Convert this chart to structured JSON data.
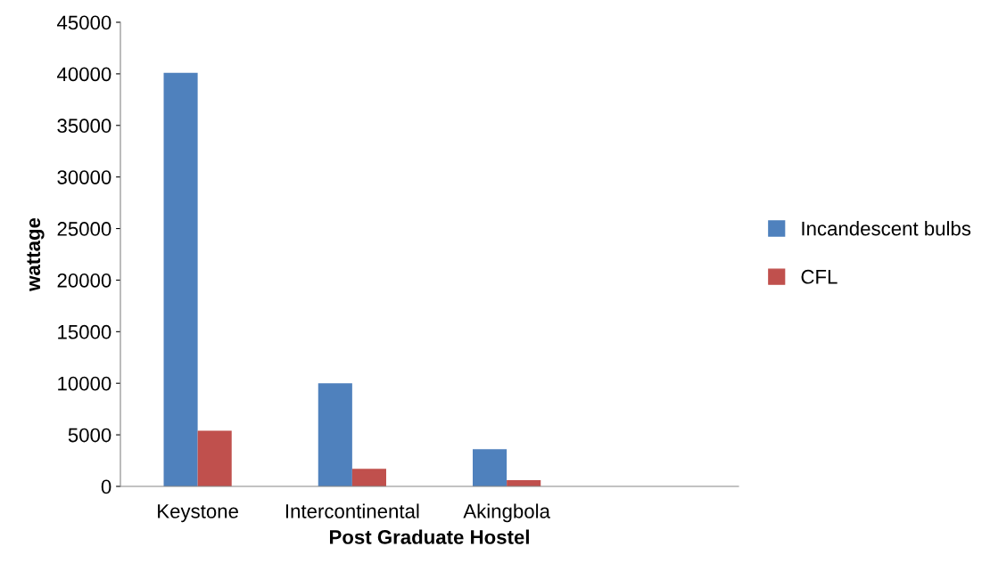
{
  "chart_data": {
    "type": "bar",
    "xlabel": "Post Graduate Hostel",
    "ylabel": "wattage",
    "categories": [
      "Keystone",
      "Intercontinental",
      "Akingbola",
      null
    ],
    "series": [
      {
        "name": "Incandescent bulbs",
        "color": "#4f81bd",
        "values": [
          40100,
          10000,
          3600,
          null
        ]
      },
      {
        "name": "CFL",
        "color": "#c0504d",
        "values": [
          5400,
          1700,
          600,
          null
        ]
      }
    ],
    "ylim": [
      0,
      45000
    ],
    "yticks": [
      0,
      5000,
      10000,
      15000,
      20000,
      25000,
      30000,
      35000,
      40000,
      45000
    ],
    "grid": false,
    "legend": "right"
  }
}
